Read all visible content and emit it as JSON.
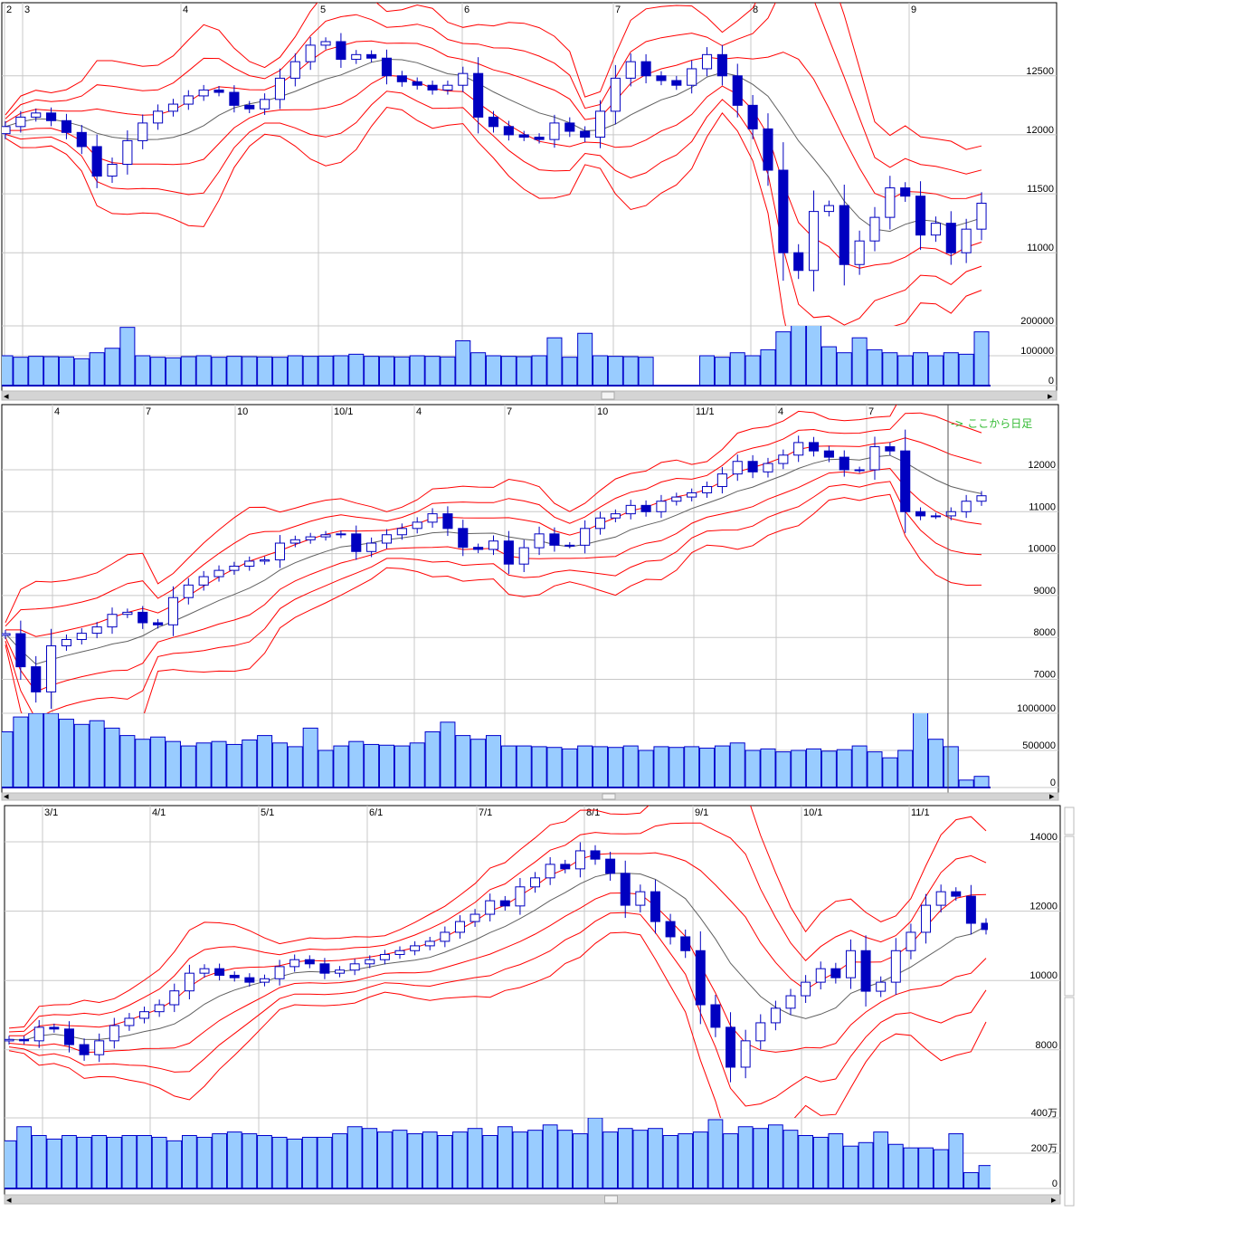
{
  "colors": {
    "up_fill": "#ffffff",
    "candle": "#0000c0",
    "band": "#ff0000",
    "average": "#606060",
    "volume_fill": "#99ccff",
    "volume_edge": "#0000cc",
    "grid": "#c8c8c8"
  },
  "chart_data": [
    {
      "type": "candlestick",
      "x_tick_labels": [
        "2",
        "3",
        "4",
        "5",
        "6",
        "7",
        "8",
        "9"
      ],
      "y_ticks": [
        11000,
        11500,
        12000,
        12500
      ],
      "y_tick_labels": [
        "11000",
        "11500",
        "12000",
        "12500"
      ],
      "ylim": [
        10380,
        13120
      ],
      "volume_ticks": [
        0,
        100000,
        200000
      ],
      "volume_tick_labels": [
        "0",
        "100000",
        "200000"
      ],
      "volume_lim": [
        0,
        200000
      ],
      "closes": [
        12070,
        12150,
        12185,
        12120,
        12020,
        11900,
        11650,
        11750,
        11950,
        12100,
        12200,
        12260,
        12330,
        12380,
        12360,
        12250,
        12220,
        12300,
        12480,
        12620,
        12760,
        12790,
        12640,
        12680,
        12650,
        12500,
        12450,
        12420,
        12380,
        12420,
        12520,
        12150,
        12070,
        12000,
        11980,
        11960,
        12100,
        12030,
        11980,
        12200,
        12480,
        12620,
        12500,
        12460,
        12420,
        12560,
        12680,
        12500,
        12250,
        12050,
        11700,
        11000,
        10850,
        11350,
        11400,
        10900,
        11100,
        11300,
        11550,
        11480,
        11150,
        11250,
        11000,
        11200,
        11420
      ],
      "volumes": [
        100000,
        95000,
        98000,
        97000,
        96000,
        90000,
        110000,
        125000,
        195000,
        100000,
        95000,
        93000,
        97000,
        100000,
        95000,
        98000,
        97000,
        96000,
        95000,
        100000,
        98000,
        99000,
        100000,
        105000,
        98000,
        97000,
        96000,
        100000,
        98000,
        96000,
        150000,
        110000,
        100000,
        98000,
        97000,
        100000,
        160000,
        95000,
        175000,
        100000,
        98000,
        97000,
        95000,
        0,
        0,
        0,
        100000,
        95000,
        110000,
        100000,
        120000,
        180000,
        250000,
        230000,
        130000,
        110000,
        160000,
        120000,
        110000,
        100000,
        110000,
        100000,
        110000,
        105000,
        180000
      ]
    },
    {
      "type": "candlestick",
      "x_tick_labels": [
        "4",
        "7",
        "10",
        "10/1",
        "4",
        "7",
        "10",
        "11/1",
        "4",
        "7"
      ],
      "annotation": "-> ここから日足",
      "y_ticks": [
        7000,
        8000,
        9000,
        10000,
        11000,
        12000
      ],
      "y_tick_labels": [
        "7000",
        "8000",
        "9000",
        "10000",
        "11000",
        "12000"
      ],
      "ylim": [
        6190,
        13555
      ],
      "volume_ticks": [
        0,
        500000,
        1000000
      ],
      "volume_tick_labels": [
        "0",
        "500000",
        "1000000"
      ],
      "volume_lim": [
        0,
        1000000
      ],
      "closes": [
        8090,
        7300,
        6700,
        7800,
        7950,
        8100,
        8250,
        8550,
        8600,
        8350,
        8300,
        8950,
        9250,
        9450,
        9600,
        9700,
        9820,
        9850,
        10250,
        10330,
        10400,
        10450,
        10470,
        10050,
        10250,
        10450,
        10600,
        10750,
        10950,
        10600,
        10150,
        10100,
        10300,
        9750,
        10140,
        10470,
        10200,
        10200,
        10600,
        10850,
        10950,
        11150,
        11000,
        11250,
        11350,
        11450,
        11600,
        11900,
        12200,
        11950,
        12150,
        12350,
        12650,
        12450,
        12300,
        12000,
        12000,
        12550,
        12450,
        11000,
        10900,
        10900,
        11000,
        11250,
        11380
      ],
      "volumes": [
        750000,
        950000,
        1000000,
        1000000,
        920000,
        850000,
        900000,
        800000,
        700000,
        650000,
        680000,
        620000,
        560000,
        600000,
        620000,
        580000,
        640000,
        700000,
        600000,
        550000,
        800000,
        500000,
        560000,
        620000,
        580000,
        570000,
        560000,
        600000,
        750000,
        880000,
        700000,
        650000,
        700000,
        560000,
        560000,
        550000,
        540000,
        520000,
        560000,
        550000,
        540000,
        560000,
        500000,
        550000,
        540000,
        550000,
        530000,
        560000,
        600000,
        500000,
        520000,
        480000,
        500000,
        520000,
        490000,
        510000,
        560000,
        480000,
        400000,
        500000,
        1050000,
        650000,
        550000,
        100000,
        150000
      ]
    },
    {
      "type": "candlestick",
      "x_tick_labels": [
        "3/1",
        "4/1",
        "5/1",
        "6/1",
        "7/1",
        "8/1",
        "9/1",
        "10/1",
        "11/1"
      ],
      "y_ticks": [
        8000,
        10000,
        12000,
        14000
      ],
      "y_tick_labels": [
        "8000",
        "10000",
        "12000",
        "14000"
      ],
      "ylim": [
        6037,
        15044
      ],
      "volume_ticks": [
        0,
        200,
        400
      ],
      "volume_tick_labels": [
        "0",
        "200万",
        "400万"
      ],
      "volume_lim": [
        0,
        400
      ],
      "closes": [
        8300,
        8260,
        8650,
        8600,
        8150,
        7860,
        8260,
        8700,
        8910,
        9100,
        9300,
        9700,
        10210,
        10340,
        10150,
        10080,
        9950,
        10050,
        10400,
        10600,
        10480,
        10210,
        10300,
        10480,
        10600,
        10750,
        10860,
        11000,
        11130,
        11390,
        11700,
        11910,
        12300,
        12150,
        12700,
        12960,
        13350,
        13220,
        13740,
        13500,
        13090,
        12170,
        12560,
        11700,
        11260,
        10860,
        9300,
        8650,
        7500,
        8260,
        8780,
        9200,
        9560,
        9950,
        10340,
        10080,
        10860,
        9690,
        9950,
        10860,
        11390,
        12170,
        12560,
        12430,
        11650,
        11470
      ],
      "volumes": [
        270,
        350,
        300,
        280,
        300,
        290,
        300,
        290,
        300,
        300,
        290,
        270,
        300,
        290,
        310,
        320,
        310,
        300,
        290,
        280,
        290,
        290,
        310,
        350,
        340,
        320,
        330,
        310,
        320,
        300,
        320,
        340,
        300,
        350,
        320,
        330,
        360,
        330,
        310,
        400,
        320,
        340,
        330,
        340,
        300,
        310,
        320,
        390,
        310,
        350,
        340,
        360,
        330,
        300,
        290,
        310,
        240,
        260,
        320,
        250,
        230,
        230,
        220,
        310,
        90,
        130
      ]
    }
  ]
}
